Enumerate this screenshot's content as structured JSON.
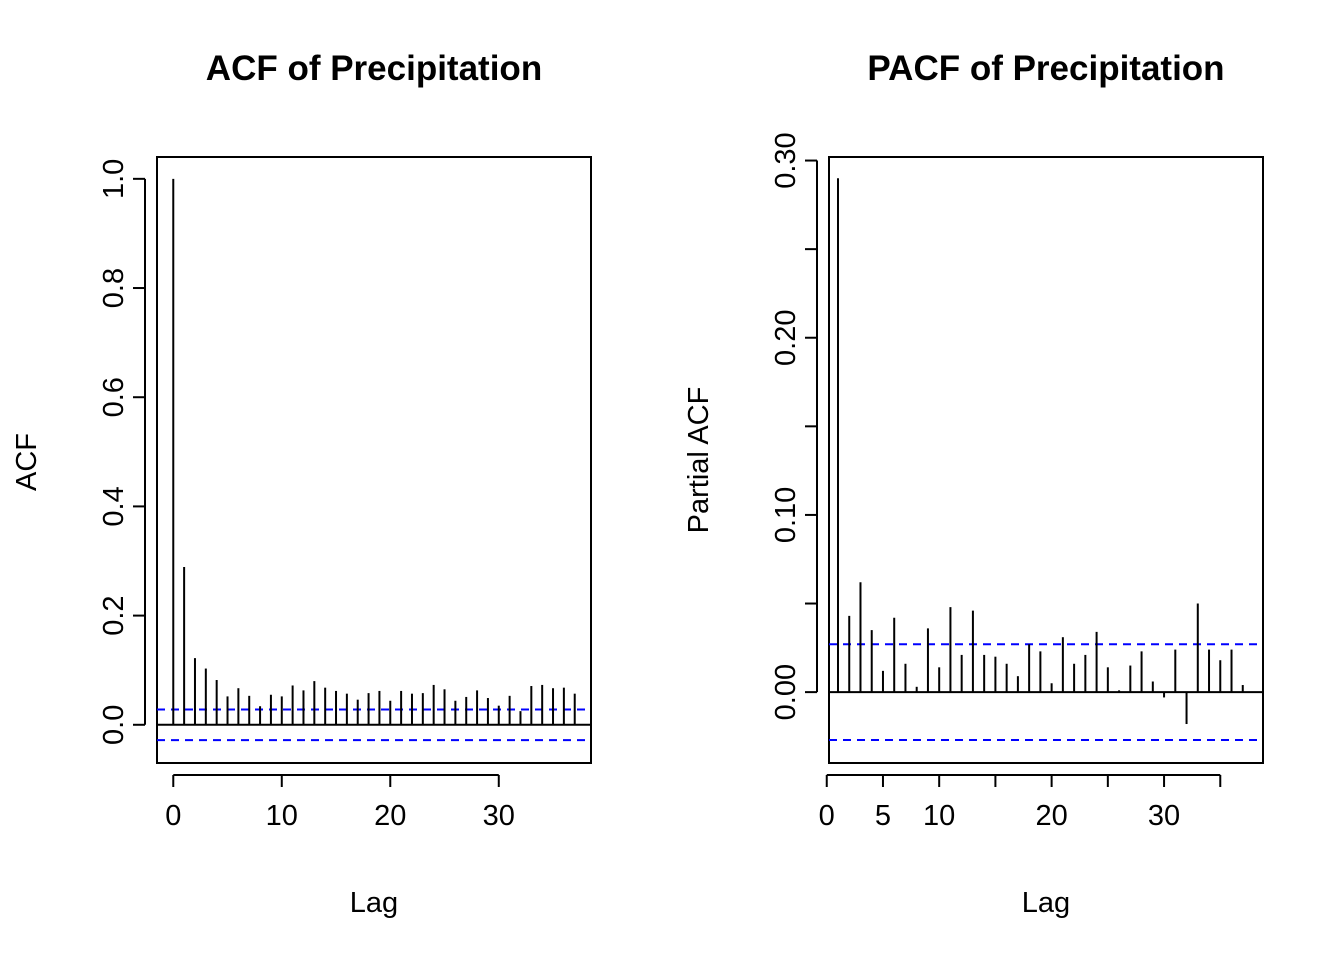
{
  "chart_data": [
    {
      "type": "bar",
      "title": "ACF of Precipitation",
      "xlabel": "Lag",
      "ylabel": "ACF",
      "xlim": [
        -1.5,
        38.5
      ],
      "ylim": [
        -0.07,
        1.04
      ],
      "x_ticks": [
        0,
        10,
        20,
        30
      ],
      "y_ticks": [
        0.0,
        0.2,
        0.4,
        0.6,
        0.8,
        1.0
      ],
      "y_tick_labels": [
        "0.0",
        "0.2",
        "0.4",
        "0.6",
        "0.8",
        "1.0"
      ],
      "ci": [
        0.028,
        -0.028
      ],
      "x": [
        0,
        1,
        2,
        3,
        4,
        5,
        6,
        7,
        8,
        9,
        10,
        11,
        12,
        13,
        14,
        15,
        16,
        17,
        18,
        19,
        20,
        21,
        22,
        23,
        24,
        25,
        26,
        27,
        28,
        29,
        30,
        31,
        32,
        33,
        34,
        35,
        36,
        37
      ],
      "values": [
        1.0,
        0.289,
        0.122,
        0.103,
        0.082,
        0.052,
        0.067,
        0.053,
        0.034,
        0.055,
        0.052,
        0.072,
        0.063,
        0.08,
        0.068,
        0.062,
        0.057,
        0.046,
        0.058,
        0.062,
        0.044,
        0.062,
        0.057,
        0.058,
        0.073,
        0.065,
        0.044,
        0.051,
        0.063,
        0.049,
        0.035,
        0.053,
        0.025,
        0.071,
        0.073,
        0.067,
        0.068,
        0.057
      ],
      "ci_color": "#0000ff"
    },
    {
      "type": "bar",
      "title": "PACF of Precipitation",
      "xlabel": "Lag",
      "ylabel": "Partial ACF",
      "xlim": [
        0.2,
        38.8
      ],
      "ylim": [
        -0.04,
        0.302
      ],
      "x_ticks": [
        0,
        5,
        10,
        20,
        30
      ],
      "x_minor_ticks": [
        15,
        25,
        35
      ],
      "y_ticks": [
        0.0,
        0.05,
        0.1,
        0.15,
        0.2,
        0.25,
        0.3
      ],
      "y_tick_labels": [
        "0.00",
        "",
        "0.10",
        "",
        "0.20",
        "",
        "0.30"
      ],
      "ci": [
        0.027,
        -0.027
      ],
      "x": [
        1,
        2,
        3,
        4,
        5,
        6,
        7,
        8,
        9,
        10,
        11,
        12,
        13,
        14,
        15,
        16,
        17,
        18,
        19,
        20,
        21,
        22,
        23,
        24,
        25,
        26,
        27,
        28,
        29,
        30,
        31,
        32,
        33,
        34,
        35,
        36,
        37
      ],
      "values": [
        0.29,
        0.043,
        0.062,
        0.035,
        0.012,
        0.042,
        0.016,
        0.003,
        0.036,
        0.014,
        0.048,
        0.021,
        0.046,
        0.021,
        0.02,
        0.016,
        0.009,
        0.027,
        0.023,
        0.005,
        0.031,
        0.016,
        0.021,
        0.034,
        0.014,
        0.001,
        0.015,
        0.023,
        0.006,
        -0.003,
        0.024,
        -0.018,
        0.05,
        0.024,
        0.018,
        0.024,
        0.004
      ],
      "ci_color": "#0000ff"
    }
  ]
}
